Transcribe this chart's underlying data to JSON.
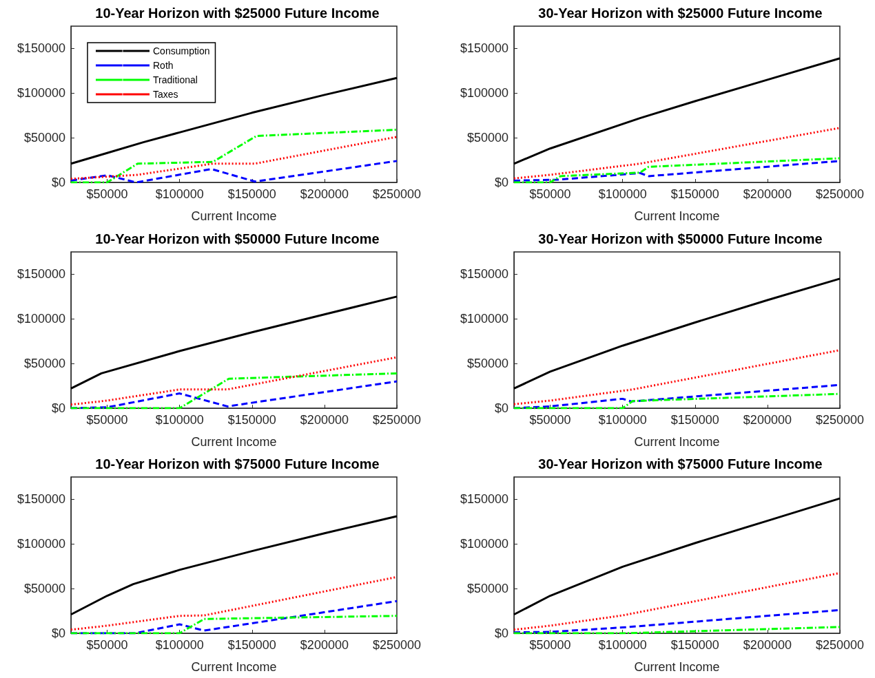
{
  "chart_data": [
    {
      "type": "line",
      "title": "10-Year Horizon with $25000 Future Income",
      "xlabel": "Current Income",
      "xlim": [
        25000,
        250000
      ],
      "xticks": [
        {
          "value": 50000,
          "label": "$50000"
        },
        {
          "value": 100000,
          "label": "$100000"
        },
        {
          "value": 150000,
          "label": "$150000"
        },
        {
          "value": 200000,
          "label": "$200000"
        },
        {
          "value": 250000,
          "label": "$250000"
        }
      ],
      "ylim": [
        0,
        175000
      ],
      "yticks": [
        {
          "value": 0,
          "label": "$0"
        },
        {
          "value": 50000,
          "label": "$50000"
        },
        {
          "value": 100000,
          "label": "$100000"
        },
        {
          "value": 150000,
          "label": "$150000"
        }
      ],
      "grid": false,
      "legend": "top left",
      "marker": "none",
      "series": [
        {
          "name": "Consumption",
          "color": "#000000",
          "line_style": "solid",
          "x": [
            25000,
            50000,
            75000,
            100000,
            125000,
            150000,
            200000,
            250000
          ],
          "values": [
            21000,
            33000,
            45000,
            56000,
            67000,
            78000,
            98000,
            117000
          ]
        },
        {
          "name": "Roth",
          "color": "#0000ff",
          "line_style": "dashed",
          "x": [
            25000,
            50000,
            70000,
            122000,
            152000,
            250000
          ],
          "values": [
            2000,
            8000,
            0,
            15000,
            1000,
            24000
          ]
        },
        {
          "name": "Traditional",
          "color": "#00ff00",
          "line_style": "dashdot",
          "x": [
            25000,
            50000,
            71000,
            123000,
            153000,
            250000
          ],
          "values": [
            0,
            0,
            21000,
            23000,
            52000,
            59000
          ]
        },
        {
          "name": "Taxes",
          "color": "#ff0000",
          "line_style": "dotted",
          "x": [
            25000,
            71000,
            123000,
            152000,
            250000
          ],
          "values": [
            4000,
            8500,
            21000,
            21000,
            51000
          ]
        }
      ]
    },
    {
      "type": "line",
      "title": "30-Year Horizon with $25000 Future Income",
      "xlabel": "Current Income",
      "xlim": [
        25000,
        250000
      ],
      "xticks": [
        {
          "value": 50000,
          "label": "$50000"
        },
        {
          "value": 100000,
          "label": "$100000"
        },
        {
          "value": 150000,
          "label": "$150000"
        },
        {
          "value": 200000,
          "label": "$200000"
        },
        {
          "value": 250000,
          "label": "$250000"
        }
      ],
      "ylim": [
        0,
        175000
      ],
      "yticks": [
        {
          "value": 0,
          "label": "$0"
        },
        {
          "value": 50000,
          "label": "$50000"
        },
        {
          "value": 100000,
          "label": "$100000"
        },
        {
          "value": 150000,
          "label": "$150000"
        }
      ],
      "grid": false,
      "marker": "none",
      "series": [
        {
          "color": "#000000",
          "line_style": "solid",
          "x": [
            25000,
            50000,
            112000,
            150000,
            200000,
            250000
          ],
          "values": [
            21000,
            38000,
            72000,
            91000,
            115000,
            139000
          ]
        },
        {
          "color": "#0000ff",
          "line_style": "dashed",
          "x": [
            25000,
            55000,
            112000,
            118000,
            250000
          ],
          "values": [
            2000,
            3000,
            10500,
            7000,
            24000
          ]
        },
        {
          "color": "#00ff00",
          "line_style": "dashdot",
          "x": [
            25000,
            50000,
            57000,
            112000,
            118000,
            250000
          ],
          "values": [
            0,
            0,
            7000,
            11000,
            17500,
            27000
          ]
        },
        {
          "color": "#ff0000",
          "line_style": "dotted",
          "x": [
            25000,
            50000,
            112000,
            250000
          ],
          "values": [
            4500,
            8500,
            21000,
            61000
          ]
        }
      ]
    },
    {
      "type": "line",
      "title": "10-Year Horizon with $50000 Future Income",
      "xlabel": "Current Income",
      "xlim": [
        25000,
        250000
      ],
      "xticks": [
        {
          "value": 50000,
          "label": "$50000"
        },
        {
          "value": 100000,
          "label": "$100000"
        },
        {
          "value": 150000,
          "label": "$150000"
        },
        {
          "value": 200000,
          "label": "$200000"
        },
        {
          "value": 250000,
          "label": "$250000"
        }
      ],
      "ylim": [
        0,
        175000
      ],
      "yticks": [
        {
          "value": 0,
          "label": "$0"
        },
        {
          "value": 50000,
          "label": "$50000"
        },
        {
          "value": 100000,
          "label": "$100000"
        },
        {
          "value": 150000,
          "label": "$150000"
        }
      ],
      "grid": false,
      "marker": "none",
      "series": [
        {
          "color": "#000000",
          "line_style": "solid",
          "x": [
            25000,
            46000,
            100000,
            150000,
            200000,
            250000
          ],
          "values": [
            22000,
            39000,
            64000,
            85000,
            105000,
            125000
          ]
        },
        {
          "color": "#0000ff",
          "line_style": "dashed",
          "x": [
            25000,
            50000,
            100000,
            133000,
            250000
          ],
          "values": [
            0,
            1000,
            16500,
            2000,
            30000
          ]
        },
        {
          "color": "#00ff00",
          "line_style": "dashdot",
          "x": [
            25000,
            100000,
            134000,
            250000
          ],
          "values": [
            0,
            0,
            33000,
            39000
          ]
        },
        {
          "color": "#ff0000",
          "line_style": "dotted",
          "x": [
            25000,
            50000,
            100000,
            133000,
            250000
          ],
          "values": [
            4000,
            8500,
            21000,
            21000,
            57000
          ]
        }
      ]
    },
    {
      "type": "line",
      "title": "30-Year Horizon with $50000 Future Income",
      "xlabel": "Current Income",
      "xlim": [
        25000,
        250000
      ],
      "xticks": [
        {
          "value": 50000,
          "label": "$50000"
        },
        {
          "value": 100000,
          "label": "$100000"
        },
        {
          "value": 150000,
          "label": "$150000"
        },
        {
          "value": 200000,
          "label": "$200000"
        },
        {
          "value": 250000,
          "label": "$250000"
        }
      ],
      "ylim": [
        0,
        175000
      ],
      "yticks": [
        {
          "value": 0,
          "label": "$0"
        },
        {
          "value": 50000,
          "label": "$50000"
        },
        {
          "value": 100000,
          "label": "$100000"
        },
        {
          "value": 150000,
          "label": "$150000"
        }
      ],
      "grid": false,
      "marker": "none",
      "series": [
        {
          "color": "#000000",
          "line_style": "solid",
          "x": [
            25000,
            50000,
            100000,
            150000,
            200000,
            250000
          ],
          "values": [
            22000,
            41000,
            70000,
            96000,
            121000,
            145000
          ]
        },
        {
          "color": "#0000ff",
          "line_style": "dashed",
          "x": [
            25000,
            50000,
            100000,
            106000,
            250000
          ],
          "values": [
            0,
            2000,
            10500,
            7500,
            26000
          ]
        },
        {
          "color": "#00ff00",
          "line_style": "dashdot",
          "x": [
            25000,
            100000,
            107000,
            250000
          ],
          "values": [
            0,
            0,
            8000,
            16000
          ]
        },
        {
          "color": "#ff0000",
          "line_style": "dotted",
          "x": [
            25000,
            50000,
            107000,
            250000
          ],
          "values": [
            4500,
            8500,
            21000,
            65000
          ]
        }
      ]
    },
    {
      "type": "line",
      "title": "10-Year Horizon with $75000 Future Income",
      "xlabel": "Current Income",
      "xlim": [
        25000,
        250000
      ],
      "xticks": [
        {
          "value": 50000,
          "label": "$50000"
        },
        {
          "value": 100000,
          "label": "$100000"
        },
        {
          "value": 150000,
          "label": "$150000"
        },
        {
          "value": 200000,
          "label": "$200000"
        },
        {
          "value": 250000,
          "label": "$250000"
        }
      ],
      "ylim": [
        0,
        175000
      ],
      "yticks": [
        {
          "value": 0,
          "label": "$0"
        },
        {
          "value": 50000,
          "label": "$50000"
        },
        {
          "value": 100000,
          "label": "$100000"
        },
        {
          "value": 150000,
          "label": "$150000"
        }
      ],
      "grid": false,
      "marker": "none",
      "series": [
        {
          "color": "#000000",
          "line_style": "solid",
          "x": [
            25000,
            50000,
            68000,
            100000,
            150000,
            200000,
            250000
          ],
          "values": [
            21000,
            42000,
            55000,
            71000,
            92000,
            112000,
            131000
          ]
        },
        {
          "color": "#0000ff",
          "line_style": "dashed",
          "x": [
            25000,
            69000,
            100000,
            117000,
            250000
          ],
          "values": [
            0,
            0,
            10000,
            3000,
            36000
          ]
        },
        {
          "color": "#00ff00",
          "line_style": "dashdot",
          "x": [
            25000,
            100000,
            117000,
            250000
          ],
          "values": [
            0,
            0,
            16000,
            19500
          ]
        },
        {
          "color": "#ff0000",
          "line_style": "dotted",
          "x": [
            25000,
            50000,
            100000,
            117000,
            250000
          ],
          "values": [
            4000,
            8500,
            19500,
            20000,
            63000
          ]
        }
      ]
    },
    {
      "type": "line",
      "title": "30-Year Horizon with $75000 Future Income",
      "xlabel": "Current Income",
      "xlim": [
        25000,
        250000
      ],
      "xticks": [
        {
          "value": 50000,
          "label": "$50000"
        },
        {
          "value": 100000,
          "label": "$100000"
        },
        {
          "value": 150000,
          "label": "$150000"
        },
        {
          "value": 200000,
          "label": "$200000"
        },
        {
          "value": 250000,
          "label": "$250000"
        }
      ],
      "ylim": [
        0,
        175000
      ],
      "yticks": [
        {
          "value": 0,
          "label": "$0"
        },
        {
          "value": 50000,
          "label": "$50000"
        },
        {
          "value": 100000,
          "label": "$100000"
        },
        {
          "value": 150000,
          "label": "$150000"
        }
      ],
      "grid": false,
      "marker": "none",
      "series": [
        {
          "color": "#000000",
          "line_style": "solid",
          "x": [
            25000,
            50000,
            100000,
            150000,
            200000,
            250000
          ],
          "values": [
            21000,
            42000,
            74500,
            101000,
            126000,
            151000
          ]
        },
        {
          "color": "#0000ff",
          "line_style": "dashed",
          "x": [
            25000,
            50000,
            100000,
            250000
          ],
          "values": [
            1000,
            1500,
            6500,
            26000
          ]
        },
        {
          "color": "#00ff00",
          "line_style": "dashdot",
          "x": [
            25000,
            100000,
            250000
          ],
          "values": [
            0,
            0,
            7000
          ]
        },
        {
          "color": "#ff0000",
          "line_style": "dotted",
          "x": [
            25000,
            50000,
            100000,
            250000
          ],
          "values": [
            4000,
            8500,
            20000,
            67500
          ]
        }
      ]
    }
  ]
}
